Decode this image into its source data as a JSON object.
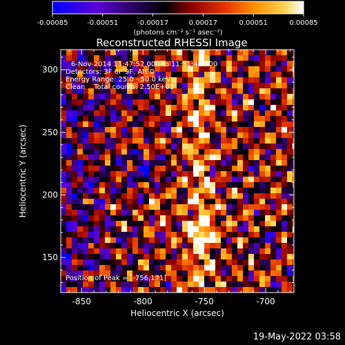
{
  "chart_data": {
    "type": "heatmap",
    "title": "Reconstructed RHESSI Image",
    "xlabel": "Heliocentric X (arcsec)",
    "ylabel": "Heliocentric Y (arcsec)",
    "xlim": [
      -867,
      -677
    ],
    "ylim": [
      122,
      316
    ],
    "xticks": [
      -850,
      -800,
      -750,
      -700
    ],
    "xtick_labels": [
      "-850",
      "-800",
      "-750",
      "-700"
    ],
    "yticks": [
      150,
      200,
      250,
      300
    ],
    "ytick_labels": [
      "150",
      "200",
      "250",
      "300"
    ],
    "colorbar": {
      "min": -0.00085,
      "max": 0.00085,
      "ticks": [
        -0.00085,
        -0.00051,
        -0.00017,
        0.00017,
        0.00051,
        0.00085
      ],
      "tick_labels": [
        "-0.00085",
        "-0.00051",
        "-0.00017",
        "0.00017",
        "0.00051",
        "0.00085"
      ],
      "unit_label": "(photons cm⁻² s⁻¹ asec⁻²)",
      "colormap": [
        "#0000ff",
        "#5a00d0",
        "#000000",
        "#8a0000",
        "#e03000",
        "#ff8c00",
        "#ffd24a",
        "#ffffff"
      ]
    },
    "annotations": [
      "6-Nov-2014 11:47:52.000 to 11:51:48.000",
      "Detectors: 3F 6F 9F, Att 0",
      "Energy Range: 25.0 - 50.0 keV",
      "Clean    Total counts: 2.50E+03"
    ],
    "peak_label": "Position of Peak = [-756,171]",
    "peak": {
      "x": -756,
      "y": 171
    }
  },
  "footer": {
    "timestamp": "19-May-2022 03:58"
  }
}
